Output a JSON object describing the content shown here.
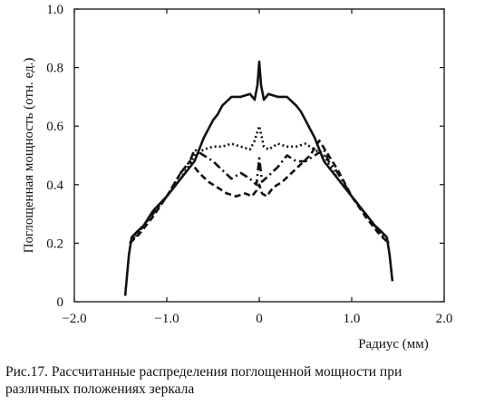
{
  "caption": {
    "line1": "Рис.17.  Рассчитанные распределения поглощенной мощности при",
    "line2": "различных положениях зеркала"
  },
  "chart_data": {
    "type": "line",
    "title": "",
    "xlabel": "Радиус (мм)",
    "ylabel": "Поглощенная мощность (отн. ед.)",
    "xlim": [
      -2.0,
      2.0
    ],
    "ylim": [
      0,
      1.0
    ],
    "xticks": [
      {
        "value": -2.0,
        "label": "−2.0"
      },
      {
        "value": -1.0,
        "label": "−1.0"
      },
      {
        "value": 0,
        "label": "0"
      },
      {
        "value": 1.0,
        "label": "1.0"
      },
      {
        "value": 2.0,
        "label": "2.0"
      }
    ],
    "yticks": [
      {
        "value": 0,
        "label": "0"
      },
      {
        "value": 0.2,
        "label": "0.2"
      },
      {
        "value": 0.4,
        "label": "0.4"
      },
      {
        "value": 0.6,
        "label": "0.6"
      },
      {
        "value": 0.8,
        "label": "0.8"
      },
      {
        "value": 1.0,
        "label": "1.0"
      }
    ],
    "grid": false,
    "legend": "none",
    "series": [
      {
        "style": "solid",
        "x": [
          -1.45,
          -1.41,
          -1.38,
          -1.32,
          -1.25,
          -1.15,
          -1.0,
          -0.85,
          -0.7,
          -0.6,
          -0.5,
          -0.45,
          -0.4,
          -0.3,
          -0.2,
          -0.1,
          -0.05,
          -0.02,
          0.0,
          0.02,
          0.05,
          0.1,
          0.2,
          0.3,
          0.4,
          0.45,
          0.5,
          0.6,
          0.7,
          0.85,
          1.0,
          1.15,
          1.25,
          1.32,
          1.38,
          1.41,
          1.44
        ],
        "y": [
          0.02,
          0.16,
          0.22,
          0.24,
          0.26,
          0.31,
          0.36,
          0.42,
          0.48,
          0.56,
          0.62,
          0.64,
          0.67,
          0.7,
          0.7,
          0.71,
          0.69,
          0.74,
          0.82,
          0.74,
          0.69,
          0.71,
          0.7,
          0.7,
          0.67,
          0.65,
          0.62,
          0.56,
          0.48,
          0.42,
          0.36,
          0.3,
          0.26,
          0.24,
          0.22,
          0.16,
          0.07
        ]
      },
      {
        "style": "dotted",
        "x": [
          -1.4,
          -1.3,
          -1.15,
          -1.0,
          -0.85,
          -0.75,
          -0.7,
          -0.6,
          -0.5,
          -0.4,
          -0.3,
          -0.2,
          -0.1,
          -0.05,
          0.0,
          0.05,
          0.1,
          0.2,
          0.3,
          0.4,
          0.5,
          0.6,
          0.7,
          0.75,
          0.85,
          1.0,
          1.15,
          1.3,
          1.4
        ],
        "y": [
          0.2,
          0.24,
          0.3,
          0.36,
          0.42,
          0.47,
          0.5,
          0.52,
          0.53,
          0.53,
          0.54,
          0.53,
          0.52,
          0.55,
          0.6,
          0.53,
          0.52,
          0.54,
          0.53,
          0.53,
          0.54,
          0.52,
          0.5,
          0.47,
          0.42,
          0.36,
          0.3,
          0.24,
          0.2
        ]
      },
      {
        "style": "dash-dot",
        "x": [
          -1.4,
          -1.3,
          -1.15,
          -1.0,
          -0.85,
          -0.75,
          -0.7,
          -0.6,
          -0.5,
          -0.4,
          -0.3,
          -0.2,
          -0.1,
          -0.03,
          0.0,
          0.03,
          0.1,
          0.2,
          0.3,
          0.4,
          0.5,
          0.6,
          0.7,
          0.75,
          0.85,
          1.0,
          1.15,
          1.3,
          1.4
        ],
        "y": [
          0.2,
          0.24,
          0.3,
          0.36,
          0.44,
          0.48,
          0.52,
          0.5,
          0.48,
          0.45,
          0.42,
          0.44,
          0.42,
          0.4,
          0.49,
          0.41,
          0.43,
          0.46,
          0.5,
          0.48,
          0.48,
          0.5,
          0.52,
          0.48,
          0.44,
          0.36,
          0.3,
          0.24,
          0.2
        ]
      },
      {
        "style": "dashed",
        "x": [
          -1.4,
          -1.3,
          -1.15,
          -1.0,
          -0.85,
          -0.75,
          -0.65,
          -0.55,
          -0.45,
          -0.35,
          -0.25,
          -0.15,
          -0.08,
          -0.03,
          0.0,
          0.03,
          0.08,
          0.15,
          0.25,
          0.35,
          0.45,
          0.55,
          0.65,
          0.75,
          0.85,
          1.0,
          1.15,
          1.3,
          1.4
        ],
        "y": [
          0.2,
          0.23,
          0.29,
          0.36,
          0.44,
          0.48,
          0.44,
          0.41,
          0.39,
          0.37,
          0.36,
          0.37,
          0.36,
          0.38,
          0.4,
          0.37,
          0.36,
          0.39,
          0.41,
          0.44,
          0.47,
          0.5,
          0.55,
          0.5,
          0.45,
          0.36,
          0.29,
          0.23,
          0.2
        ]
      }
    ]
  }
}
